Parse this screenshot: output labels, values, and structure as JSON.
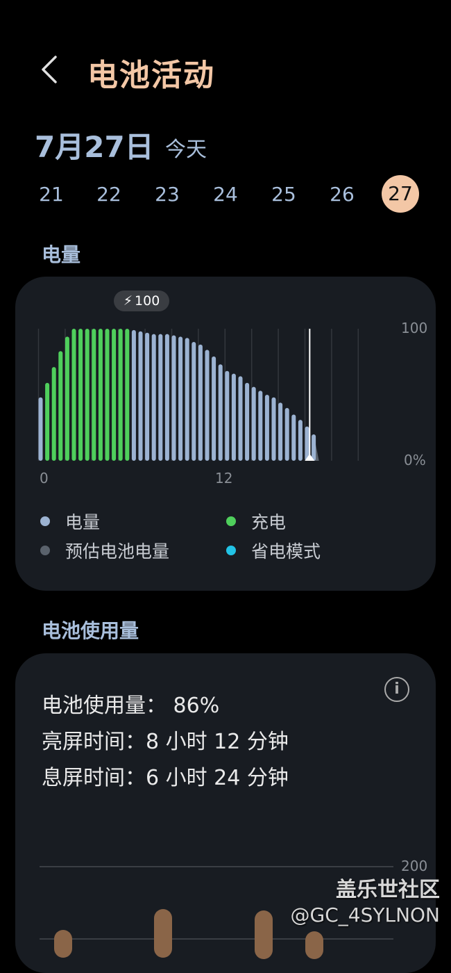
{
  "header": {
    "title": "电池活动",
    "back_icon": "chevron-left-icon"
  },
  "date": {
    "label": "7月27日",
    "today": "今天"
  },
  "days": [
    "21",
    "22",
    "23",
    "24",
    "25",
    "26",
    "27"
  ],
  "selected_day": "27",
  "colors": {
    "title": "#f3c7a6",
    "battery": "#9cb3d2",
    "charging": "#4fcf5c",
    "estimated": "#5a626c",
    "power_saving": "#22c3e6",
    "usage_bar": "#8a6548"
  },
  "battery_section": {
    "title": "电量"
  },
  "chart_data": {
    "type": "bar",
    "x_unit": "hour",
    "interval_hours": 0.5,
    "xlim": [
      0,
      24
    ],
    "ylim": [
      0,
      100
    ],
    "x_tick_labels": [
      "0",
      "12"
    ],
    "y_tick_labels": [
      "100",
      "0%"
    ],
    "grid": true,
    "peak_label": "100",
    "values": [
      48,
      59,
      71,
      83,
      94,
      100,
      100,
      100,
      100,
      100,
      100,
      100,
      100,
      100,
      99,
      98,
      97,
      96,
      96,
      96,
      95,
      94,
      93,
      90,
      88,
      84,
      79,
      73,
      68,
      66,
      64,
      59,
      56,
      53,
      50,
      48,
      44,
      40,
      35,
      31,
      26,
      20
    ],
    "charging": [
      false,
      true,
      true,
      true,
      true,
      true,
      true,
      true,
      true,
      true,
      true,
      true,
      true,
      true,
      false,
      false,
      false,
      false,
      false,
      false,
      false,
      false,
      false,
      false,
      false,
      false,
      false,
      false,
      false,
      false,
      false,
      false,
      false,
      false,
      false,
      false,
      false,
      false,
      false,
      false,
      false,
      false
    ],
    "estimated_end_hour": 21,
    "now_hour": 20.2
  },
  "legend": [
    {
      "label": "电量",
      "color": "#9cb3d2"
    },
    {
      "label": "充电",
      "color": "#4fcf5c"
    },
    {
      "label": "预估电池电量",
      "color": "#5a626c"
    },
    {
      "label": "省电模式",
      "color": "#22c3e6"
    }
  ],
  "usage_section": {
    "title": "电池使用量",
    "info_icon": "info-icon",
    "usage_label": "电池使用量：",
    "usage_value": "86%",
    "screen_on_label": "亮屏时间：",
    "screen_on_value": "8 小时 12 分钟",
    "screen_off_label": "息屏时间：",
    "screen_off_value": "6 小时 24 分钟",
    "axis_top": "200"
  },
  "watermark": {
    "brand": "盖乐世社区",
    "user": "@GC_4SYLNON"
  }
}
